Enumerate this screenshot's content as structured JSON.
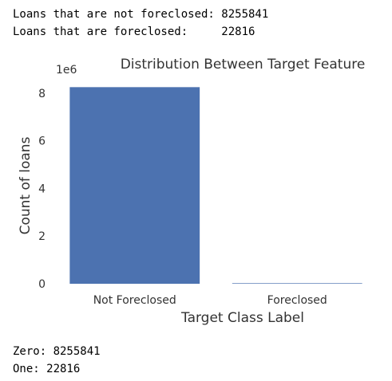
{
  "output_top": {
    "line1": "Loans that are not foreclosed: 8255841",
    "line2": "Loans that are foreclosed:     22816"
  },
  "output_bottom": {
    "line1": "Zero: 8255841",
    "line2": "One: 22816"
  },
  "chart_data": {
    "type": "bar",
    "title": "Distribution Between Target Feature",
    "xlabel": "Target Class Label",
    "ylabel": "Count of loans",
    "y_offset_label": "1e6",
    "categories": [
      "Not Foreclosed",
      "Foreclosed"
    ],
    "values": [
      8255841,
      22816
    ],
    "ylim": [
      0,
      8668633
    ],
    "yticks": [
      0,
      2,
      4,
      6,
      8
    ],
    "ytick_scale": 1000000,
    "grid": false,
    "bar_color": "#4c72b0"
  }
}
